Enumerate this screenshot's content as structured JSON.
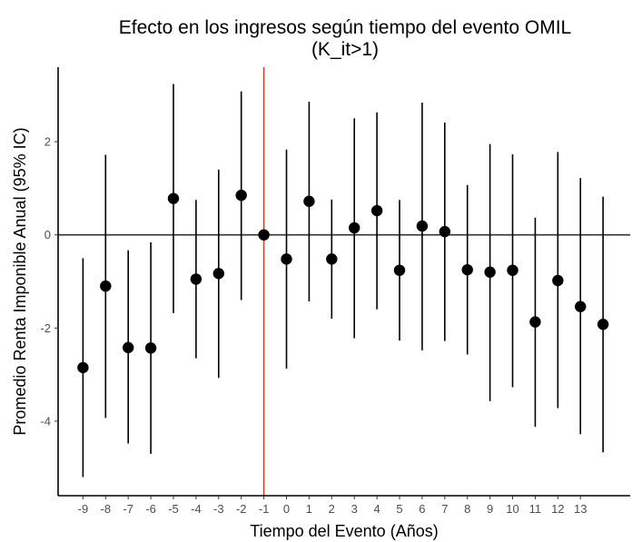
{
  "chart_data": {
    "type": "scatter",
    "title": "Efecto en los ingresos según tiempo del evento OMIL",
    "subtitle": "(K_it>1)",
    "xlabel": "Tiempo del Evento (Años)",
    "ylabel": "Promedio Renta Imponible Anual  (95% IC)",
    "x": [
      -9,
      -8,
      -7,
      -6,
      -5,
      -4,
      -3,
      -2,
      -1,
      0,
      1,
      2,
      3,
      4,
      5,
      6,
      7,
      8,
      9,
      10,
      11,
      12,
      13,
      14
    ],
    "x_tick_labels": [
      "-9",
      "-8",
      "-7",
      "-6",
      "-5",
      "-4",
      "-3",
      "-2",
      "-1",
      "0",
      "1",
      "2",
      "3",
      "4",
      "5",
      "6",
      "7",
      "8",
      "9",
      "10",
      "11",
      "12",
      "13"
    ],
    "series": [
      {
        "estimate": [
          -2.85,
          -1.1,
          -2.42,
          -2.43,
          0.78,
          -0.95,
          -0.83,
          0.85,
          0.0,
          -0.52,
          0.72,
          -0.52,
          0.15,
          0.52,
          -0.76,
          0.19,
          0.07,
          -0.75,
          -0.8,
          -0.76,
          -1.87,
          -0.98,
          -1.54,
          -1.92
        ],
        "ci_lower": [
          -5.2,
          -3.93,
          -4.48,
          -4.7,
          -1.68,
          -2.65,
          -3.07,
          -1.4,
          0.0,
          -2.87,
          -1.43,
          -1.8,
          -2.22,
          -1.6,
          -2.27,
          -2.48,
          -2.28,
          -2.57,
          -3.57,
          -3.27,
          -4.12,
          -3.72,
          -4.28,
          -4.67
        ],
        "ci_upper": [
          -0.5,
          1.72,
          -0.33,
          -0.16,
          3.24,
          0.75,
          1.4,
          3.08,
          0.0,
          1.83,
          2.86,
          0.76,
          2.5,
          2.63,
          0.75,
          2.84,
          2.41,
          1.07,
          1.95,
          1.73,
          0.37,
          1.78,
          1.22,
          0.82
        ]
      }
    ],
    "y_ticks": [
      -4,
      -2,
      0,
      2
    ],
    "xlim": [
      -10.1,
      15.2
    ],
    "ylim": [
      -5.6,
      3.6
    ],
    "reference_lines": {
      "horizontal_y": 0,
      "vertical_x": -1
    },
    "colors": {
      "points": "#000000",
      "error_bars": "#000000",
      "horizontal_line": "#333333",
      "vertical_line": "#e8311f"
    },
    "grid": false,
    "legend": "none"
  }
}
